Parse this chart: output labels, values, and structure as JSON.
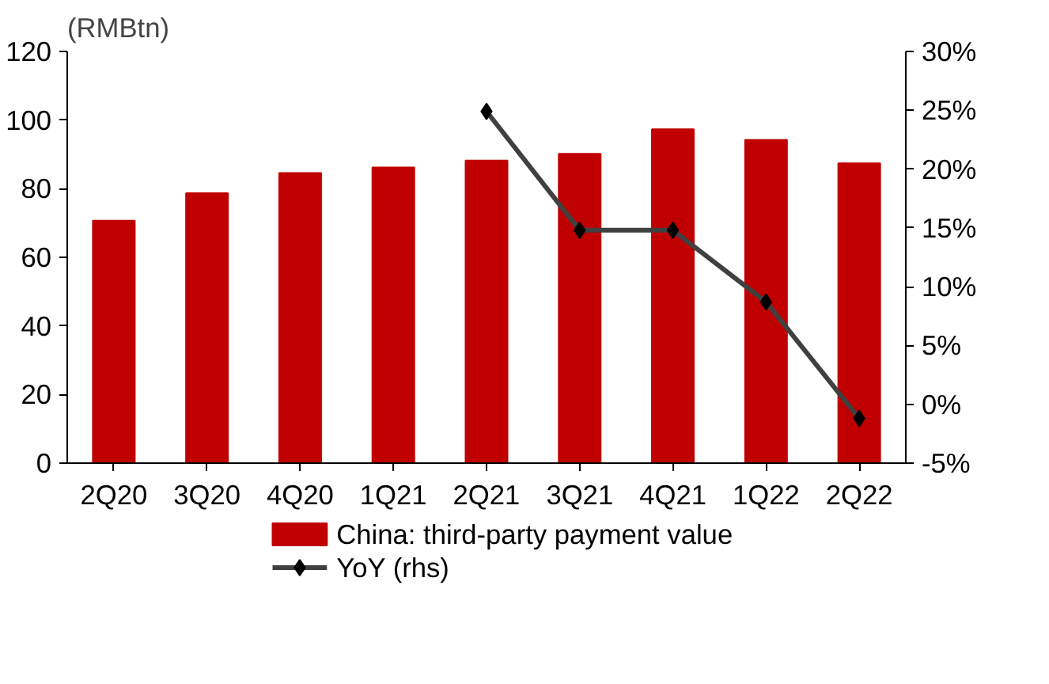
{
  "chart_data": {
    "type": "bar",
    "ylabel": "(RMBtn)",
    "categories": [
      "2Q20",
      "3Q20",
      "4Q20",
      "1Q21",
      "2Q21",
      "3Q21",
      "4Q21",
      "1Q22",
      "2Q22"
    ],
    "series": [
      {
        "name": "China: third-party payment value",
        "color": "#c00000",
        "values": [
          70.7,
          78.7,
          84.6,
          86.2,
          88.2,
          90.2,
          97.3,
          94.2,
          87.4
        ]
      },
      {
        "name": "YoY (rhs)",
        "type": "line",
        "axis": "y2",
        "color": "#404040",
        "marker": "diamond",
        "values": [
          null,
          null,
          null,
          null,
          24.9,
          14.8,
          14.8,
          8.7,
          -1.2
        ]
      }
    ],
    "ylim": [
      0,
      120
    ],
    "yticks": [
      0,
      20,
      40,
      60,
      80,
      100,
      120
    ],
    "y2lim": [
      -5,
      30
    ],
    "y2ticks": [
      {
        "value": -5,
        "label": "-5%"
      },
      {
        "value": 0,
        "label": "0%"
      },
      {
        "value": 5,
        "label": "5%"
      },
      {
        "value": 10,
        "label": "10%"
      },
      {
        "value": 15,
        "label": "15%"
      },
      {
        "value": 20,
        "label": "20%"
      },
      {
        "value": 25,
        "label": "25%"
      },
      {
        "value": 30,
        "label": "30%"
      }
    ],
    "grid": false,
    "legend": "bottom"
  }
}
